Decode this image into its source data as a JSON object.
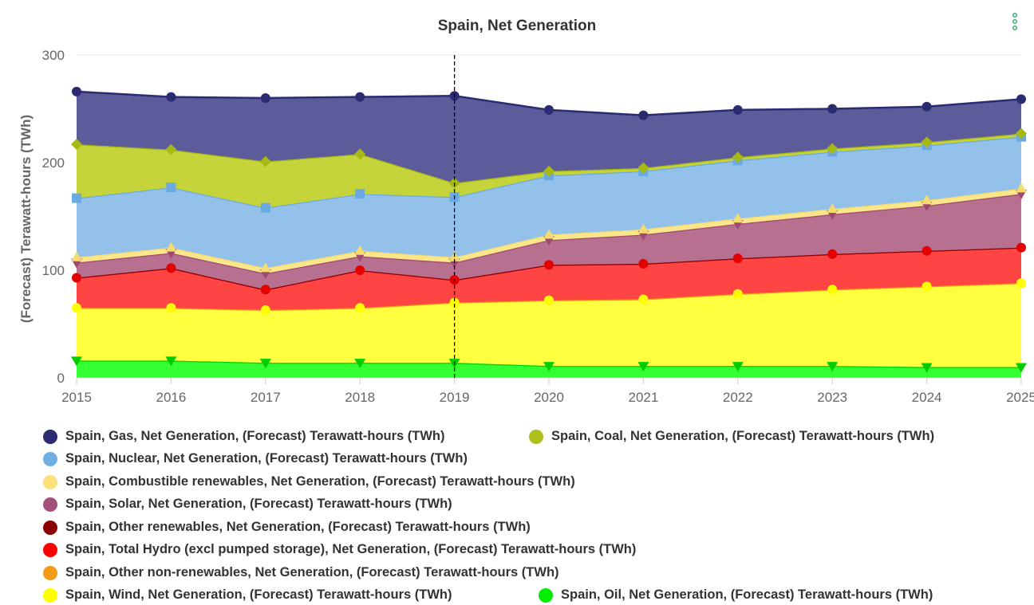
{
  "chart_data": {
    "type": "area",
    "stacked": true,
    "title": "Spain, Net Generation",
    "xlabel": "",
    "ylabel": "(Forecast) Terawatt-hours (TWh)",
    "x": [
      "2015",
      "2016",
      "2017",
      "2018",
      "2019",
      "2020",
      "2021",
      "2022",
      "2023",
      "2024",
      "2025"
    ],
    "ylim": [
      0,
      300
    ],
    "yticks": [
      "0",
      "100",
      "200",
      "300"
    ],
    "grid": true,
    "forecast_divider_at": "2019",
    "legend_position": "bottom",
    "series": [
      {
        "name": "Spain, Gas, Net Generation, (Forecast) Terawatt-hours (TWh)",
        "color": "#2b2b72",
        "fill": "#5c5c9a",
        "marker": "circle",
        "values": [
          49,
          49,
          59,
          53,
          81,
          57,
          49,
          44,
          37,
          33,
          32
        ]
      },
      {
        "name": "Spain, Coal, Net Generation, (Forecast) Terawatt-hours (TWh)",
        "color": "#a8b812",
        "fill": "#c5d43a",
        "marker": "diamond",
        "values": [
          50,
          35,
          43,
          37,
          13,
          4,
          3,
          3,
          3,
          3,
          3
        ]
      },
      {
        "name": "Spain, Nuclear, Net Generation, (Forecast) Terawatt-hours (TWh)",
        "color": "#6aaae0",
        "fill": "#94c1ea",
        "marker": "square",
        "values": [
          55,
          56,
          56,
          53,
          56,
          55,
          54,
          54,
          53,
          51,
          48
        ]
      },
      {
        "name": "Spain, Combustible renewables, Net Generation, (Forecast) Terawatt-hours (TWh)",
        "color": "#f5dc70",
        "fill": "#fbe68c",
        "marker": "triangle-up",
        "values": [
          5,
          5,
          5,
          5,
          5,
          5,
          5,
          5,
          5,
          5,
          5
        ]
      },
      {
        "name": "Spain, Solar, Net Generation, (Forecast) Terawatt-hours (TWh)",
        "color": "#9e4a70",
        "fill": "#b7708f",
        "marker": "triangle-down",
        "values": [
          14,
          14,
          15,
          13,
          16,
          23,
          27,
          32,
          37,
          42,
          50
        ]
      },
      {
        "name": "Spain, Other renewables, Net Generation, (Forecast) Terawatt-hours (TWh)",
        "color": "#8b0000",
        "fill": "#b02020",
        "marker": "circle",
        "values": [
          0,
          0,
          0,
          0,
          0,
          0,
          0,
          0,
          0,
          0,
          0
        ]
      },
      {
        "name": "Spain, Total Hydro (excl pumped storage), Net Generation, (Forecast) Terawatt-hours (TWh)",
        "color": "#e50000",
        "fill": "#ff4444",
        "marker": "circle",
        "values": [
          28,
          37,
          19,
          35,
          21,
          33,
          33,
          33,
          33,
          33,
          33
        ]
      },
      {
        "name": "Spain, Other non-renewables, Net Generation, (Forecast) Terawatt-hours (TWh)",
        "color": "#f59a16",
        "fill": "#ffb040",
        "marker": "circle",
        "values": [
          0,
          0,
          0,
          0,
          0,
          0,
          0,
          0,
          0,
          0,
          0
        ]
      },
      {
        "name": "Spain, Wind, Net Generation, (Forecast) Terawatt-hours (TWh)",
        "color": "#ffff00",
        "fill": "#ffff40",
        "marker": "circle",
        "values": [
          49,
          49,
          49,
          51,
          56,
          61,
          62,
          67,
          71,
          75,
          78
        ]
      },
      {
        "name": "Spain, Oil, Net Generation, (Forecast) Terawatt-hours (TWh)",
        "color": "#00cc00",
        "fill": "#33ff33",
        "marker": "triangle-down",
        "values": [
          16,
          16,
          14,
          14,
          14,
          11,
          11,
          11,
          11,
          10,
          10
        ]
      }
    ]
  },
  "legend_items": [
    {
      "label": "Spain, Gas, Net Generation, (Forecast) Terawatt-hours (TWh)",
      "color": "#2b2b72"
    },
    {
      "label": "Spain, Coal, Net Generation, (Forecast) Terawatt-hours (TWh)",
      "color": "#b0c01c"
    },
    {
      "label": "Spain, Nuclear, Net Generation, (Forecast) Terawatt-hours (TWh)",
      "color": "#72afe2"
    },
    {
      "label": "Spain, Combustible renewables, Net Generation, (Forecast) Terawatt-hours (TWh)",
      "color": "#fbe07a"
    },
    {
      "label": "Spain, Solar, Net Generation, (Forecast) Terawatt-hours (TWh)",
      "color": "#a3517a"
    },
    {
      "label": "Spain, Other renewables, Net Generation, (Forecast) Terawatt-hours (TWh)",
      "color": "#8b0000"
    },
    {
      "label": "Spain, Total Hydro (excl pumped storage), Net Generation, (Forecast) Terawatt-hours (TWh)",
      "color": "#ff0000"
    },
    {
      "label": "Spain, Other non-renewables, Net Generation, (Forecast) Terawatt-hours (TWh)",
      "color": "#f59a16"
    },
    {
      "label": "Spain, Wind, Net Generation, (Forecast) Terawatt-hours (TWh)",
      "color": "#ffff00"
    },
    {
      "label": "Spain, Oil, Net Generation, (Forecast) Terawatt-hours (TWh)",
      "color": "#00ee00"
    }
  ],
  "menu_icon": "context-menu-icon"
}
